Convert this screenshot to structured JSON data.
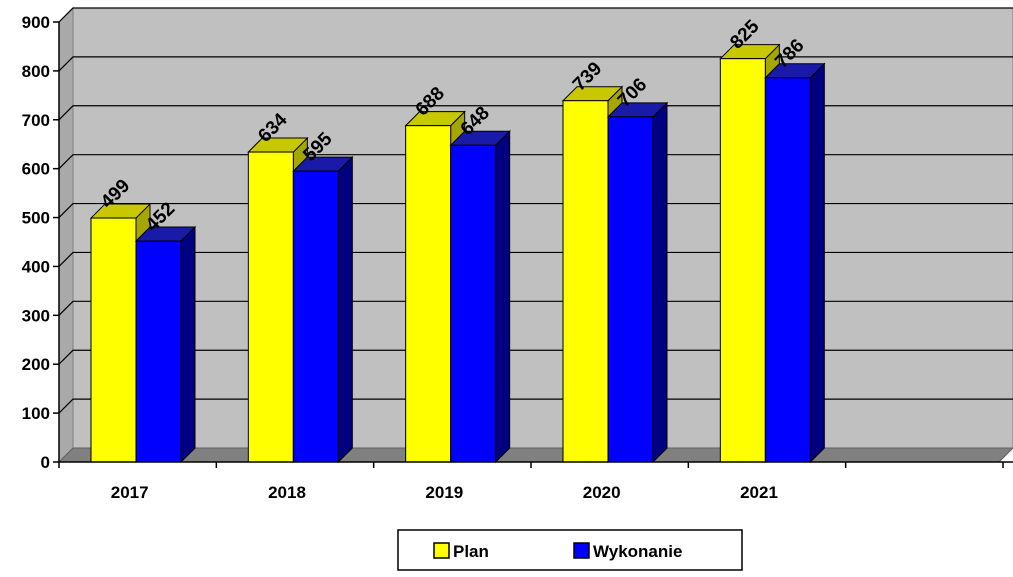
{
  "chart_data": {
    "type": "bar",
    "categories": [
      "2017",
      "2018",
      "2019",
      "2020",
      "2021"
    ],
    "series": [
      {
        "name": "Plan",
        "values": [
          499,
          634,
          688,
          739,
          825
        ],
        "color": "#FFFF00",
        "top_color": "#C8C800",
        "side_color": "#A6A600"
      },
      {
        "name": "Wykonanie",
        "values": [
          452,
          595,
          648,
          706,
          786
        ],
        "color": "#0000FF",
        "top_color": "#1A1AA8",
        "side_color": "#000080"
      }
    ],
    "ylim": [
      0,
      900
    ],
    "yticks": [
      "0",
      "100",
      "200",
      "300",
      "400",
      "500",
      "600",
      "700",
      "800",
      "900"
    ],
    "grid": true,
    "legend_position": "bottom",
    "plot_background": "#C0C0C0",
    "floor_color": "#808080"
  }
}
